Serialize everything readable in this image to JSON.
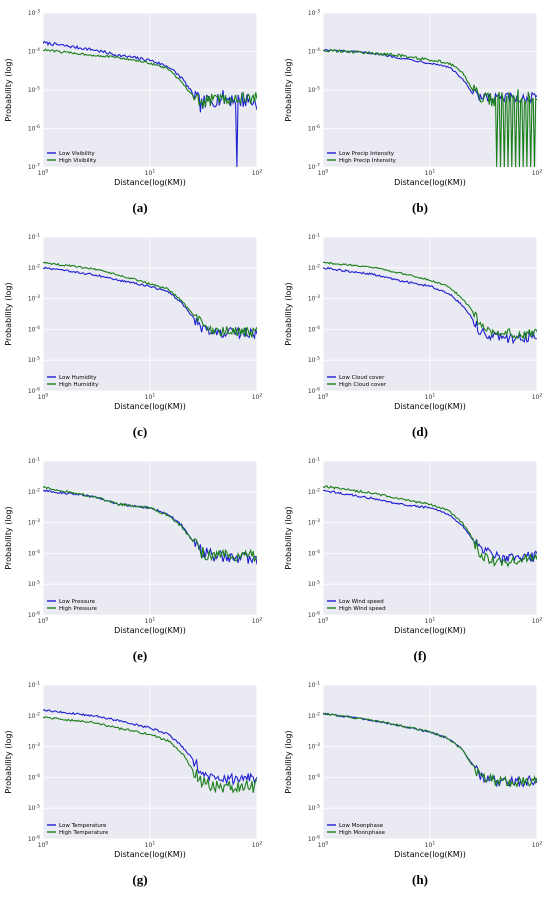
{
  "figure": {
    "panels": [
      {
        "caption": "(a)"
      },
      {
        "caption": "(b)"
      },
      {
        "caption": "(c)"
      },
      {
        "caption": "(d)"
      },
      {
        "caption": "(e)"
      },
      {
        "caption": "(f)"
      },
      {
        "caption": "(g)"
      },
      {
        "caption": "(h)"
      }
    ]
  },
  "colors": {
    "low": "#1f1fd1",
    "high": "#1b7f1b",
    "plot_bg": "#eaeaf2",
    "grid": "#ffffff"
  },
  "chart_data": [
    {
      "type": "line",
      "xscale": "log",
      "yscale": "log",
      "xlabel": "Distance(log(KM))",
      "ylabel": "Probability (log)",
      "xlim": [
        1,
        100
      ],
      "ylim": [
        1e-07,
        0.001
      ],
      "xticks": [
        "10^0",
        "10^1",
        "10^2"
      ],
      "yticks": [
        "10^-7",
        "10^-6",
        "10^-5",
        "10^-4",
        "10^-3"
      ],
      "grid": true,
      "legend": "lower-left",
      "series": [
        {
          "name": "Low Visibility",
          "color": "#1f1fd1",
          "anchors": [
            [
              1,
              0.00017
            ],
            [
              3,
              0.00011
            ],
            [
              5,
              8e-05
            ],
            [
              10,
              6e-05
            ],
            [
              15,
              4e-05
            ],
            [
              20,
              2e-05
            ],
            [
              25,
              8e-06
            ],
            [
              30,
              4e-06
            ],
            [
              40,
              6e-06
            ],
            [
              60,
              6e-06
            ],
            [
              100,
              5e-06
            ]
          ],
          "noise": 0.22,
          "spike": {
            "x": 65,
            "y": 1e-07
          }
        },
        {
          "name": "High Visibility",
          "color": "#1b7f1b",
          "anchors": [
            [
              1,
              0.00011
            ],
            [
              3,
              8e-05
            ],
            [
              5,
              7e-05
            ],
            [
              10,
              5e-05
            ],
            [
              15,
              3.5e-05
            ],
            [
              20,
              1.5e-05
            ],
            [
              25,
              7e-06
            ],
            [
              30,
              4.5e-06
            ],
            [
              40,
              6e-06
            ],
            [
              60,
              6e-06
            ],
            [
              100,
              6e-06
            ]
          ],
          "noise": 0.16
        }
      ]
    },
    {
      "type": "line",
      "xscale": "log",
      "yscale": "log",
      "xlabel": "Distance(log(KM))",
      "ylabel": "Probability (log)",
      "xlim": [
        1,
        100
      ],
      "ylim": [
        1e-07,
        0.001
      ],
      "xticks": [
        "10^0",
        "10^1",
        "10^2"
      ],
      "yticks": [
        "10^-7",
        "10^-6",
        "10^-5",
        "10^-4",
        "10^-3"
      ],
      "grid": true,
      "legend": "lower-left",
      "series": [
        {
          "name": "Low Precip Intensity",
          "color": "#1f1fd1",
          "anchors": [
            [
              1,
              0.00011
            ],
            [
              3,
              9e-05
            ],
            [
              5,
              7e-05
            ],
            [
              10,
              5e-05
            ],
            [
              15,
              4e-05
            ],
            [
              20,
              2e-05
            ],
            [
              25,
              8e-06
            ],
            [
              30,
              6e-06
            ],
            [
              40,
              6e-06
            ],
            [
              60,
              6e-06
            ],
            [
              100,
              6e-06
            ]
          ],
          "noise": 0.15
        },
        {
          "name": "High Precip Intensity",
          "color": "#1b7f1b",
          "anchors": [
            [
              1,
              0.00011
            ],
            [
              3,
              9e-05
            ],
            [
              5,
              8e-05
            ],
            [
              10,
              6e-05
            ],
            [
              15,
              5e-05
            ],
            [
              20,
              3e-05
            ],
            [
              25,
              1e-05
            ],
            [
              30,
              6e-06
            ],
            [
              40,
              6e-06
            ],
            [
              60,
              7e-06
            ],
            [
              100,
              7e-06
            ]
          ],
          "noise": 0.2,
          "dropout_from": 40
        }
      ]
    },
    {
      "type": "line",
      "xscale": "log",
      "yscale": "log",
      "xlabel": "Distance(log(KM))",
      "ylabel": "Probability (log)",
      "xlim": [
        1,
        100
      ],
      "ylim": [
        1e-06,
        0.1
      ],
      "xticks": [
        "10^0",
        "10^1",
        "10^2"
      ],
      "yticks": [
        "10^-6",
        "10^-5",
        "10^-4",
        "10^-3",
        "10^-2",
        "10^-1"
      ],
      "grid": true,
      "legend": "lower-left",
      "series": [
        {
          "name": "Low Humidity",
          "color": "#1f1fd1",
          "anchors": [
            [
              1,
              0.01
            ],
            [
              3,
              0.006
            ],
            [
              5,
              0.004
            ],
            [
              10,
              0.0025
            ],
            [
              15,
              0.0016
            ],
            [
              20,
              0.0007
            ],
            [
              25,
              0.00025
            ],
            [
              30,
              0.00012
            ],
            [
              40,
              8e-05
            ],
            [
              60,
              8e-05
            ],
            [
              100,
              7e-05
            ]
          ],
          "noise": 0.18
        },
        {
          "name": "High Humidity",
          "color": "#1b7f1b",
          "anchors": [
            [
              1,
              0.015
            ],
            [
              3,
              0.009
            ],
            [
              5,
              0.006
            ],
            [
              10,
              0.003
            ],
            [
              15,
              0.002
            ],
            [
              20,
              0.0008
            ],
            [
              25,
              0.0003
            ],
            [
              30,
              0.00015
            ],
            [
              40,
              9e-05
            ],
            [
              60,
              8e-05
            ],
            [
              100,
              8e-05
            ]
          ],
          "noise": 0.18
        }
      ]
    },
    {
      "type": "line",
      "xscale": "log",
      "yscale": "log",
      "xlabel": "Distance(log(KM))",
      "ylabel": "Probability (log)",
      "xlim": [
        1,
        100
      ],
      "ylim": [
        1e-06,
        0.1
      ],
      "xticks": [
        "10^0",
        "10^1",
        "10^2"
      ],
      "yticks": [
        "10^-6",
        "10^-5",
        "10^-4",
        "10^-3",
        "10^-2",
        "10^-1"
      ],
      "grid": true,
      "legend": "lower-left",
      "series": [
        {
          "name": "Low Cloud cover",
          "color": "#1f1fd1",
          "anchors": [
            [
              1,
              0.01
            ],
            [
              3,
              0.006
            ],
            [
              5,
              0.004
            ],
            [
              10,
              0.0025
            ],
            [
              15,
              0.0015
            ],
            [
              20,
              0.0006
            ],
            [
              25,
              0.00022
            ],
            [
              30,
              8e-05
            ],
            [
              40,
              6e-05
            ],
            [
              60,
              5e-05
            ],
            [
              100,
              6e-05
            ]
          ],
          "noise": 0.18
        },
        {
          "name": "High Cloud cover",
          "color": "#1b7f1b",
          "anchors": [
            [
              1,
              0.015
            ],
            [
              3,
              0.01
            ],
            [
              5,
              0.007
            ],
            [
              10,
              0.004
            ],
            [
              15,
              0.0025
            ],
            [
              20,
              0.001
            ],
            [
              25,
              0.0004
            ],
            [
              30,
              0.00013
            ],
            [
              40,
              8e-05
            ],
            [
              60,
              7e-05
            ],
            [
              100,
              7e-05
            ]
          ],
          "noise": 0.16
        }
      ]
    },
    {
      "type": "line",
      "xscale": "log",
      "yscale": "log",
      "xlabel": "Distance(log(KM))",
      "ylabel": "Probability (log)",
      "xlim": [
        1,
        100
      ],
      "ylim": [
        1e-06,
        0.1
      ],
      "xticks": [
        "10^0",
        "10^1",
        "10^2"
      ],
      "yticks": [
        "10^-6",
        "10^-5",
        "10^-4",
        "10^-3",
        "10^-2",
        "10^-1"
      ],
      "grid": true,
      "legend": "lower-left",
      "series": [
        {
          "name": "Low Pressure",
          "color": "#1f1fd1",
          "anchors": [
            [
              1,
              0.011
            ],
            [
              3,
              0.007
            ],
            [
              5,
              0.004
            ],
            [
              10,
              0.003
            ],
            [
              15,
              0.0018
            ],
            [
              20,
              0.0008
            ],
            [
              25,
              0.00025
            ],
            [
              30,
              0.00012
            ],
            [
              40,
              8e-05
            ],
            [
              60,
              7e-05
            ],
            [
              100,
              7e-05
            ]
          ],
          "noise": 0.2
        },
        {
          "name": "High Pressure",
          "color": "#1b7f1b",
          "anchors": [
            [
              1,
              0.014
            ],
            [
              3,
              0.007
            ],
            [
              5,
              0.004
            ],
            [
              10,
              0.003
            ],
            [
              15,
              0.0017
            ],
            [
              20,
              0.0007
            ],
            [
              25,
              0.00025
            ],
            [
              30,
              0.00011
            ],
            [
              40,
              8e-05
            ],
            [
              60,
              8e-05
            ],
            [
              100,
              8e-05
            ]
          ],
          "noise": 0.2
        }
      ]
    },
    {
      "type": "line",
      "xscale": "log",
      "yscale": "log",
      "xlabel": "Distance(log(KM))",
      "ylabel": "Probability (log)",
      "xlim": [
        1,
        100
      ],
      "ylim": [
        1e-06,
        0.1
      ],
      "xticks": [
        "10^0",
        "10^1",
        "10^2"
      ],
      "yticks": [
        "10^-6",
        "10^-5",
        "10^-4",
        "10^-3",
        "10^-2",
        "10^-1"
      ],
      "grid": true,
      "legend": "lower-left",
      "series": [
        {
          "name": "Low Wind speed",
          "color": "#1f1fd1",
          "anchors": [
            [
              1,
              0.011
            ],
            [
              3,
              0.006
            ],
            [
              5,
              0.004
            ],
            [
              10,
              0.003
            ],
            [
              15,
              0.0018
            ],
            [
              20,
              0.0008
            ],
            [
              25,
              0.0003
            ],
            [
              30,
              0.00013
            ],
            [
              40,
              8e-05
            ],
            [
              60,
              7e-05
            ],
            [
              100,
              8e-05
            ]
          ],
          "noise": 0.18
        },
        {
          "name": "High Wind speed",
          "color": "#1b7f1b",
          "anchors": [
            [
              1,
              0.015
            ],
            [
              3,
              0.009
            ],
            [
              5,
              0.006
            ],
            [
              10,
              0.004
            ],
            [
              15,
              0.0025
            ],
            [
              20,
              0.001
            ],
            [
              25,
              0.0003
            ],
            [
              30,
              9e-05
            ],
            [
              40,
              6e-05
            ],
            [
              60,
              6e-05
            ],
            [
              100,
              8e-05
            ]
          ],
          "noise": 0.2
        }
      ]
    },
    {
      "type": "line",
      "xscale": "log",
      "yscale": "log",
      "xlabel": "Distance(log(KM))",
      "ylabel": "Probability (log)",
      "xlim": [
        1,
        100
      ],
      "ylim": [
        1e-06,
        0.1
      ],
      "xticks": [
        "10^0",
        "10^1",
        "10^2"
      ],
      "yticks": [
        "10^-6",
        "10^-5",
        "10^-4",
        "10^-3",
        "10^-2",
        "10^-1"
      ],
      "grid": true,
      "legend": "lower-left",
      "series": [
        {
          "name": "Low Temperature",
          "color": "#1f1fd1",
          "anchors": [
            [
              1,
              0.015
            ],
            [
              3,
              0.01
            ],
            [
              5,
              0.007
            ],
            [
              10,
              0.004
            ],
            [
              15,
              0.0025
            ],
            [
              20,
              0.001
            ],
            [
              25,
              0.0004
            ],
            [
              30,
              0.00015
            ],
            [
              40,
              0.0001
            ],
            [
              60,
              9e-05
            ],
            [
              100,
              0.0001
            ]
          ],
          "noise": 0.18
        },
        {
          "name": "High Temperature",
          "color": "#1b7f1b",
          "anchors": [
            [
              1,
              0.009
            ],
            [
              3,
              0.006
            ],
            [
              5,
              0.004
            ],
            [
              10,
              0.0025
            ],
            [
              15,
              0.0015
            ],
            [
              20,
              0.0006
            ],
            [
              25,
              0.00018
            ],
            [
              30,
              7e-05
            ],
            [
              40,
              5e-05
            ],
            [
              60,
              5e-05
            ],
            [
              100,
              5e-05
            ]
          ],
          "noise": 0.2
        }
      ]
    },
    {
      "type": "line",
      "xscale": "log",
      "yscale": "log",
      "xlabel": "Distance(log(KM))",
      "ylabel": "Probability (log)",
      "xlim": [
        1,
        100
      ],
      "ylim": [
        1e-06,
        0.1
      ],
      "xticks": [
        "10^0",
        "10^1",
        "10^2"
      ],
      "yticks": [
        "10^-6",
        "10^-5",
        "10^-4",
        "10^-3",
        "10^-2",
        "10^-1"
      ],
      "grid": true,
      "legend": "lower-left",
      "series": [
        {
          "name": "Low Moonphase",
          "color": "#1f1fd1",
          "anchors": [
            [
              1,
              0.012
            ],
            [
              3,
              0.007
            ],
            [
              5,
              0.005
            ],
            [
              10,
              0.003
            ],
            [
              15,
              0.0018
            ],
            [
              20,
              0.0008
            ],
            [
              25,
              0.00025
            ],
            [
              30,
              0.0001
            ],
            [
              40,
              8e-05
            ],
            [
              60,
              7e-05
            ],
            [
              100,
              8e-05
            ]
          ],
          "noise": 0.17
        },
        {
          "name": "High Moonphase",
          "color": "#1b7f1b",
          "anchors": [
            [
              1,
              0.012
            ],
            [
              3,
              0.007
            ],
            [
              5,
              0.005
            ],
            [
              10,
              0.003
            ],
            [
              15,
              0.0018
            ],
            [
              20,
              0.0008
            ],
            [
              25,
              0.00025
            ],
            [
              30,
              0.0001
            ],
            [
              40,
              8e-05
            ],
            [
              60,
              7e-05
            ],
            [
              100,
              8e-05
            ]
          ],
          "noise": 0.17
        }
      ]
    }
  ]
}
